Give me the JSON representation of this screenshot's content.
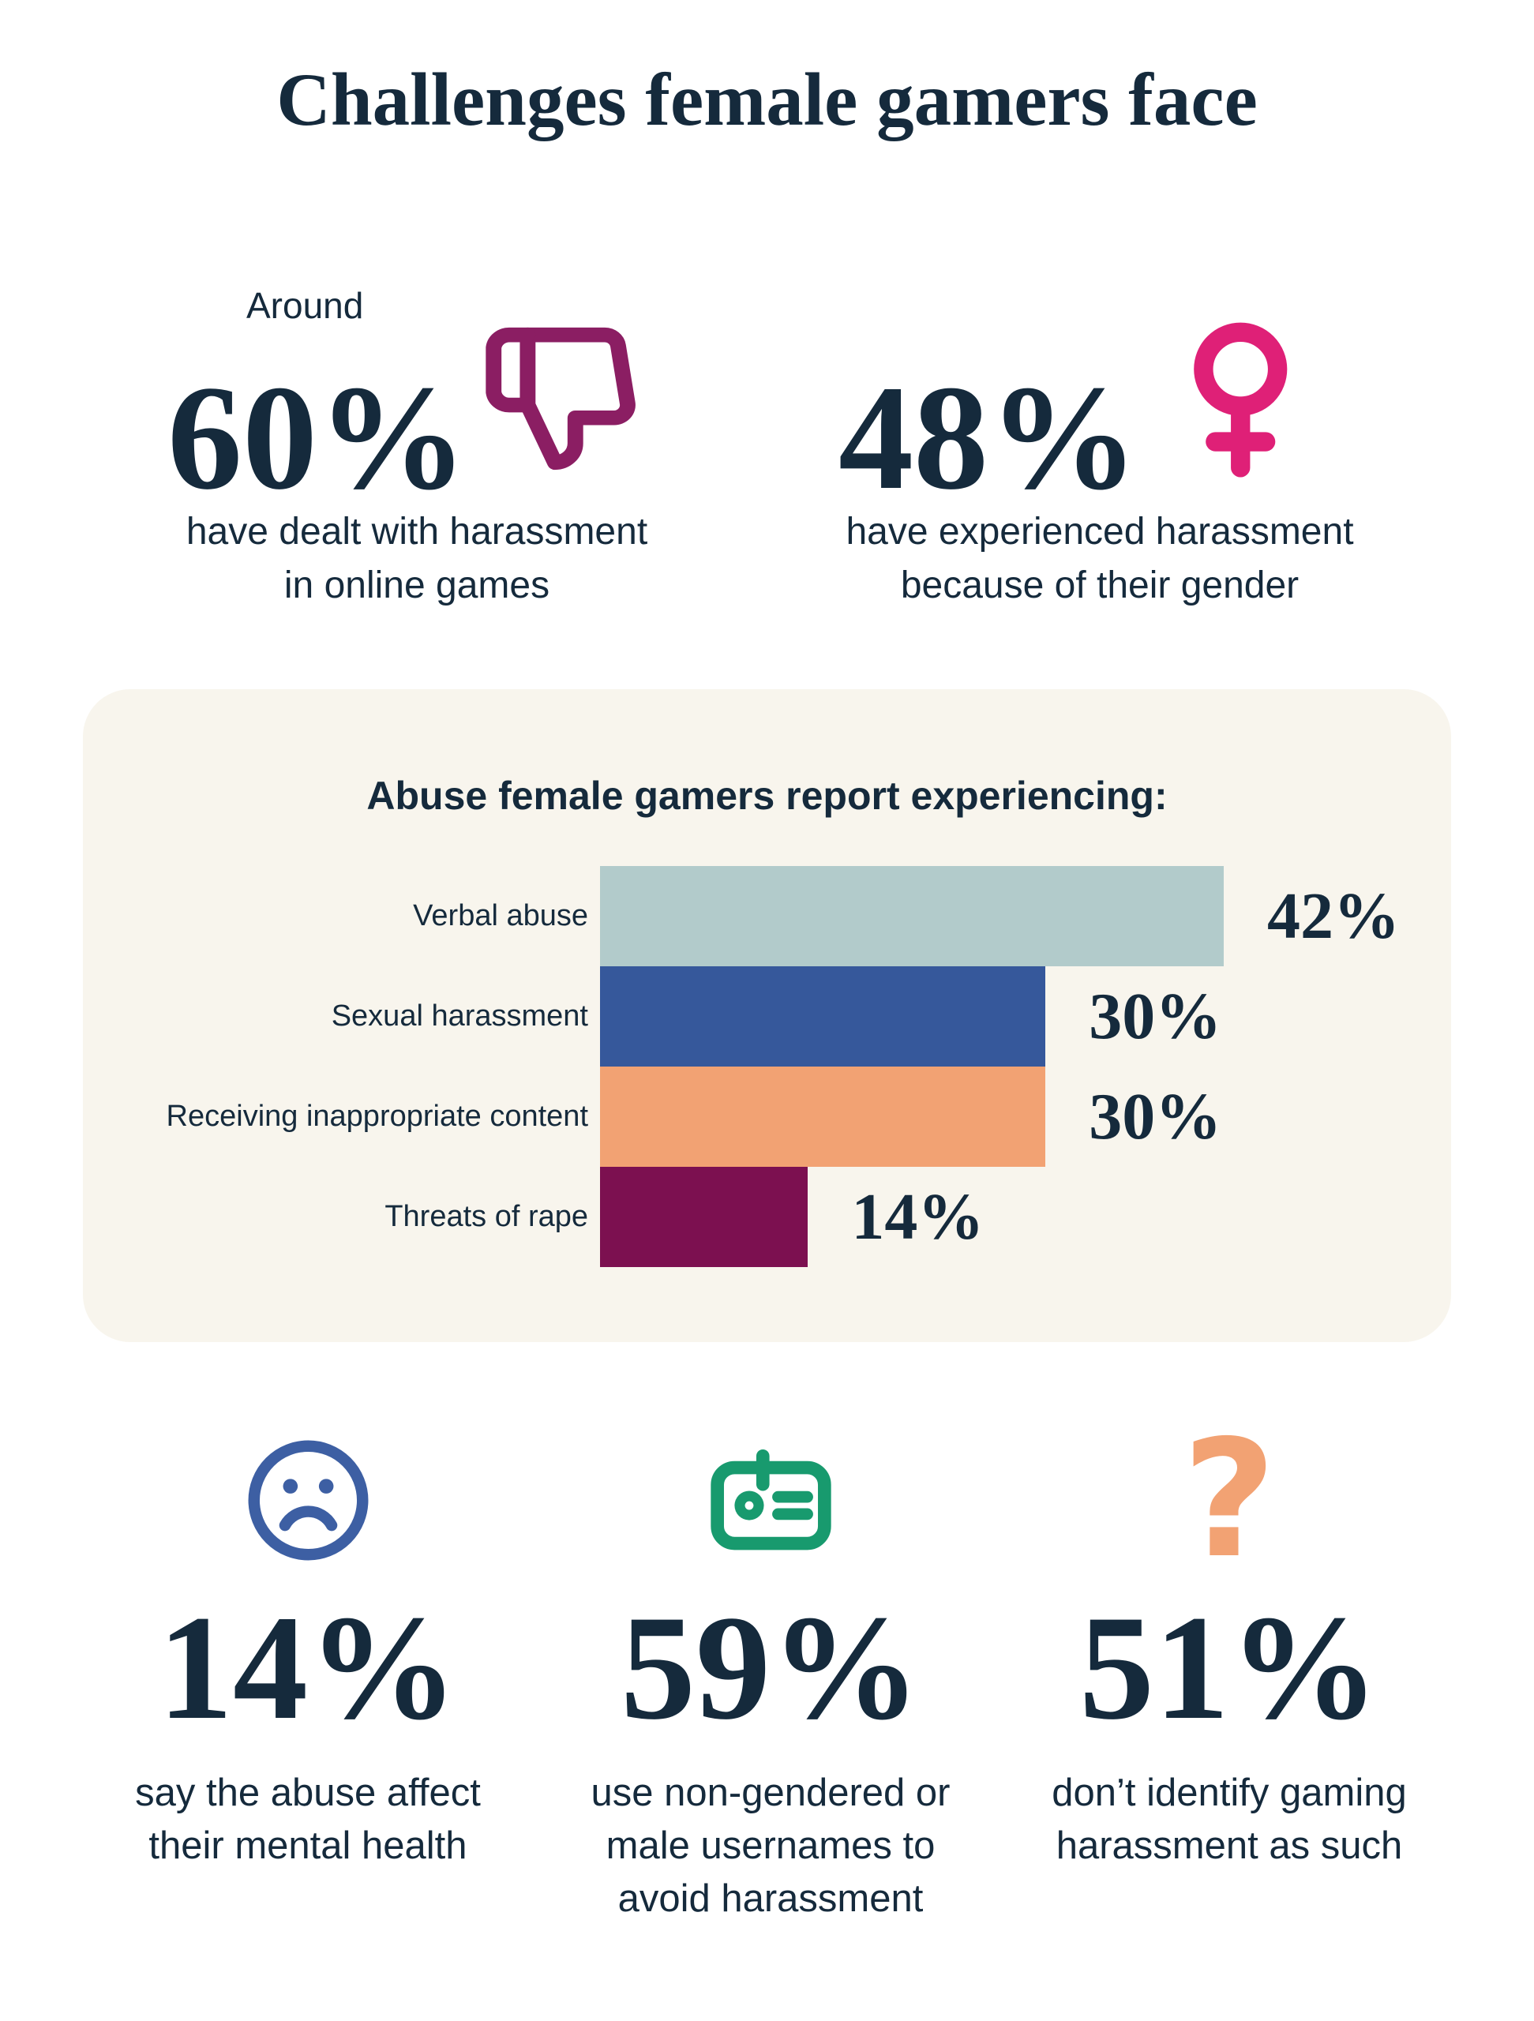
{
  "palette": {
    "navy": "#152a3c",
    "magenta": "#8b1e63",
    "pink": "#df2077",
    "teal_bar": "#b2cbcb",
    "blue_bar": "#36589b",
    "orange": "#f2a273",
    "plum_bar": "#7c1050",
    "face_blue": "#3d5fa3",
    "green": "#189a6e",
    "panel_bg": "#f8f5ed",
    "page_bg": "#ffffff"
  },
  "title": "Challenges female gamers face",
  "top_stats": [
    {
      "qualifier": "Around",
      "value": "60%",
      "icon": "thumbs-down-icon",
      "caption_lines": [
        "have dealt with harassment",
        "in online games"
      ]
    },
    {
      "qualifier": "",
      "value": "48%",
      "icon": "female-symbol-icon",
      "caption_lines": [
        "have experienced harassment",
        "because of their gender"
      ]
    }
  ],
  "chart_data": {
    "type": "bar",
    "orientation": "horizontal",
    "title": "Abuse female gamers report experiencing:",
    "categories": [
      "Verbal abuse",
      "Sexual harassment",
      "Receiving inappropriate content",
      "Threats of rape"
    ],
    "values": [
      42,
      30,
      30,
      14
    ],
    "unit": "%",
    "value_label_format": "{v}%",
    "bar_colors": [
      "#b2cbcb",
      "#36589b",
      "#f2a273",
      "#7c1050"
    ],
    "xlim": [
      0,
      46
    ],
    "grid": false,
    "axis_visible": false,
    "legend": "none",
    "value_labels_position": "right-of-bars"
  },
  "bottom_stats": [
    {
      "value": "14%",
      "icon": "sad-face-icon",
      "caption_lines": [
        "say the abuse affect",
        "their mental health"
      ]
    },
    {
      "value": "59%",
      "icon": "id-badge-icon",
      "caption_lines": [
        "use non-gendered or",
        "male usernames to",
        "avoid harassment"
      ]
    },
    {
      "value": "51%",
      "icon": "question-mark-icon",
      "icon_glyph": "?",
      "caption_lines": [
        "don’t identify gaming",
        "harassment as such"
      ]
    }
  ]
}
